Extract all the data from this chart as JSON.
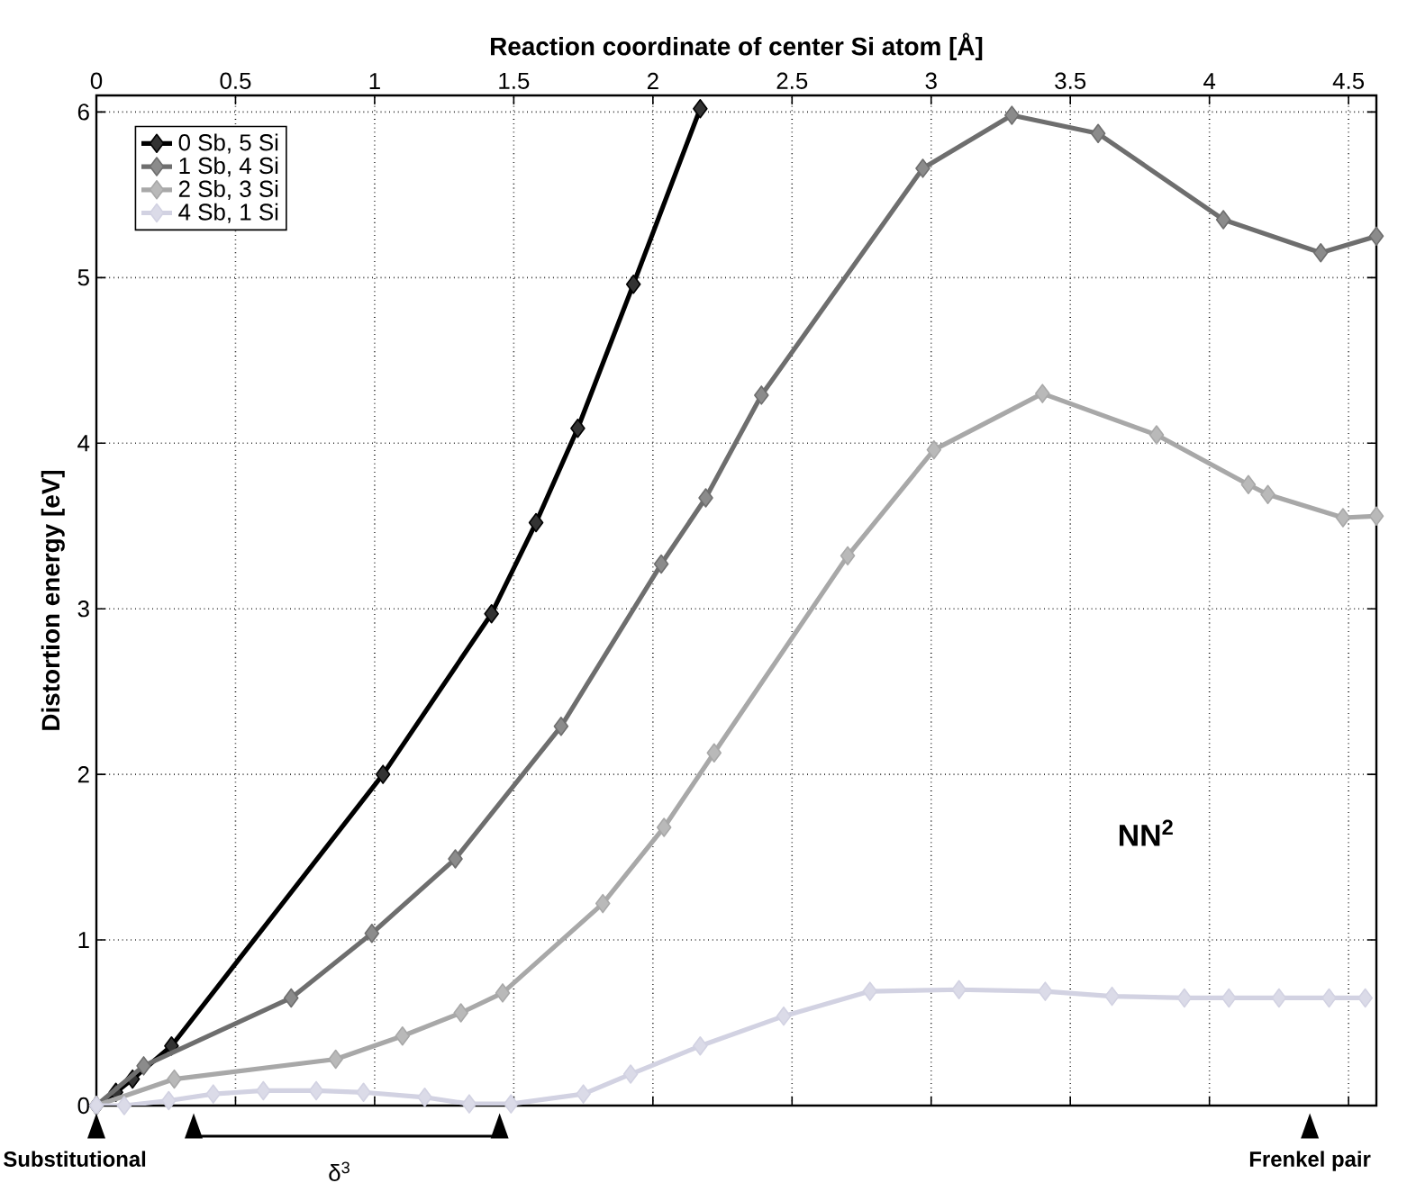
{
  "chart_data": {
    "type": "line",
    "xlabel": "Reaction coordinate of center Si atom [Å]",
    "ylabel": "Distortion energy [eV]",
    "xlim": [
      0,
      4.6
    ],
    "xticks": [
      0,
      0.5,
      1,
      1.5,
      2,
      2.5,
      3,
      3.5,
      4,
      4.5
    ],
    "ylim": [
      0,
      6.1
    ],
    "yticks": [
      0,
      1,
      2,
      3,
      4,
      5,
      6
    ],
    "grid": true,
    "legend": "top left",
    "marker": "diamond",
    "line_style": "solid",
    "series": [
      {
        "name": "0 Sb, 5 Si",
        "color": "#000000",
        "x": [
          0,
          0.07,
          0.13,
          0.27,
          1.03,
          1.42,
          1.58,
          1.73,
          1.93,
          2.17
        ],
        "values": [
          0,
          0.08,
          0.16,
          0.36,
          2.0,
          2.97,
          3.52,
          4.09,
          4.96,
          6.02
        ]
      },
      {
        "name": "1 Sb, 4 Si",
        "color": "#6e6e6e",
        "x": [
          0,
          0.17,
          0.7,
          0.99,
          1.29,
          1.67,
          2.03,
          2.19,
          2.39,
          2.97,
          3.29,
          3.6,
          4.05,
          4.4,
          4.6
        ],
        "values": [
          0,
          0.24,
          0.65,
          1.04,
          1.49,
          2.29,
          3.27,
          3.67,
          4.29,
          5.66,
          5.98,
          5.87,
          5.35,
          5.15,
          5.25
        ]
      },
      {
        "name": "2 Sb, 3 Si",
        "color": "#a8a8a8",
        "x": [
          0,
          0.28,
          0.86,
          1.1,
          1.31,
          1.46,
          1.82,
          2.04,
          2.22,
          2.7,
          3.01,
          3.4,
          3.81,
          4.14,
          4.21,
          4.48,
          4.6
        ],
        "values": [
          0,
          0.16,
          0.28,
          0.42,
          0.56,
          0.68,
          1.22,
          1.68,
          2.13,
          3.32,
          3.96,
          4.3,
          4.05,
          3.75,
          3.69,
          3.55,
          3.56
        ]
      },
      {
        "name": "4 Sb, 1 Si",
        "color": "#d2d2e2",
        "x": [
          0,
          0.1,
          0.26,
          0.42,
          0.6,
          0.79,
          0.96,
          1.18,
          1.34,
          1.49,
          1.75,
          1.92,
          2.17,
          2.47,
          2.78,
          3.1,
          3.41,
          3.65,
          3.91,
          4.07,
          4.25,
          4.43,
          4.56
        ],
        "values": [
          0,
          0,
          0.03,
          0.07,
          0.09,
          0.09,
          0.08,
          0.05,
          0.01,
          0.01,
          0.07,
          0.19,
          0.36,
          0.54,
          0.69,
          0.7,
          0.69,
          0.66,
          0.65,
          0.65,
          0.65,
          0.65,
          0.65
        ]
      }
    ],
    "annotations": [
      "NN$^{2}$",
      "Substitutional",
      "δ$^{3}$",
      "Frenkel pair"
    ]
  }
}
